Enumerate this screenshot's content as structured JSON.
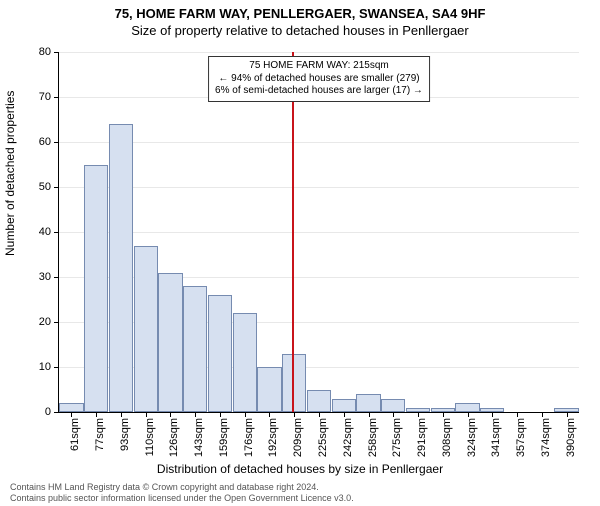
{
  "title_line1": "75, HOME FARM WAY, PENLLERGAER, SWANSEA, SA4 9HF",
  "title_line2": "Size of property relative to detached houses in Penllergaer",
  "chart": {
    "type": "histogram",
    "ylabel": "Number of detached properties",
    "xlabel": "Distribution of detached houses by size in Penllergaer",
    "ylim": [
      0,
      80
    ],
    "ytick_step": 10,
    "yticks": [
      0,
      10,
      20,
      30,
      40,
      50,
      60,
      70,
      80
    ],
    "categories": [
      "61sqm",
      "77sqm",
      "93sqm",
      "110sqm",
      "126sqm",
      "143sqm",
      "159sqm",
      "176sqm",
      "192sqm",
      "209sqm",
      "225sqm",
      "242sqm",
      "258sqm",
      "275sqm",
      "291sqm",
      "308sqm",
      "324sqm",
      "341sqm",
      "357sqm",
      "374sqm",
      "390sqm"
    ],
    "values": [
      2,
      55,
      64,
      37,
      31,
      28,
      26,
      22,
      10,
      13,
      5,
      3,
      4,
      3,
      1,
      1,
      2,
      1,
      0,
      0,
      1
    ],
    "bar_fill": "#d6e0f0",
    "bar_border": "#768bb0",
    "bar_width_ratio": 0.98,
    "grid_color": "#e8e8e8",
    "background_color": "#ffffff",
    "marker": {
      "index_after": 9,
      "fraction_into_bin": 0.4,
      "color": "#c8141b"
    },
    "annotation": {
      "line1": "75 HOME FARM WAY: 215sqm",
      "line2": "← 94% of detached houses are smaller (279)",
      "line3": "6% of semi-detached houses are larger (17) →"
    },
    "label_fontsize": 12,
    "tick_fontsize": 11
  },
  "footer": {
    "line1": "Contains HM Land Registry data © Crown copyright and database right 2024.",
    "line2": "Contains public sector information licensed under the Open Government Licence v3.0."
  }
}
